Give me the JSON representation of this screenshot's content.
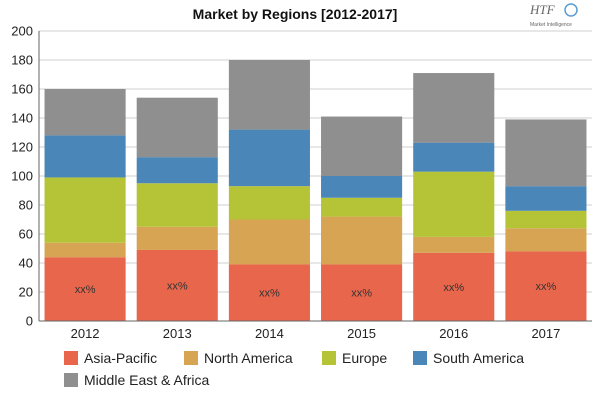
{
  "chart_data": {
    "type": "bar",
    "stacked": true,
    "title": "Market by Regions [2012-2017]",
    "categories": [
      "2012",
      "2013",
      "2014",
      "2015",
      "2016",
      "2017"
    ],
    "series": [
      {
        "name": "Asia-Pacific",
        "color": "#e8664c",
        "values": [
          44,
          49,
          39,
          39,
          47,
          48
        ]
      },
      {
        "name": "North America",
        "color": "#d6a452",
        "values": [
          10,
          16,
          31,
          33,
          11,
          16
        ]
      },
      {
        "name": "Europe",
        "color": "#b5c437",
        "values": [
          45,
          30,
          23,
          13,
          45,
          12
        ]
      },
      {
        "name": "South America",
        "color": "#4a87b8",
        "values": [
          29,
          18,
          39,
          15,
          20,
          17
        ]
      },
      {
        "name": "Middle East & Africa",
        "color": "#8f8f8f",
        "values": [
          32,
          41,
          48,
          41,
          48,
          46
        ]
      }
    ],
    "data_labels": [
      "xx%",
      "xx%",
      "xx%",
      "xx%",
      "xx%",
      "xx%"
    ],
    "ylim": [
      0,
      200
    ],
    "yticks": [
      0,
      20,
      40,
      60,
      80,
      100,
      120,
      140,
      160,
      180,
      200
    ],
    "grid": true,
    "legend_position": "bottom"
  },
  "logo": {
    "text": "HTF",
    "subtext": "Market Intelligence"
  }
}
